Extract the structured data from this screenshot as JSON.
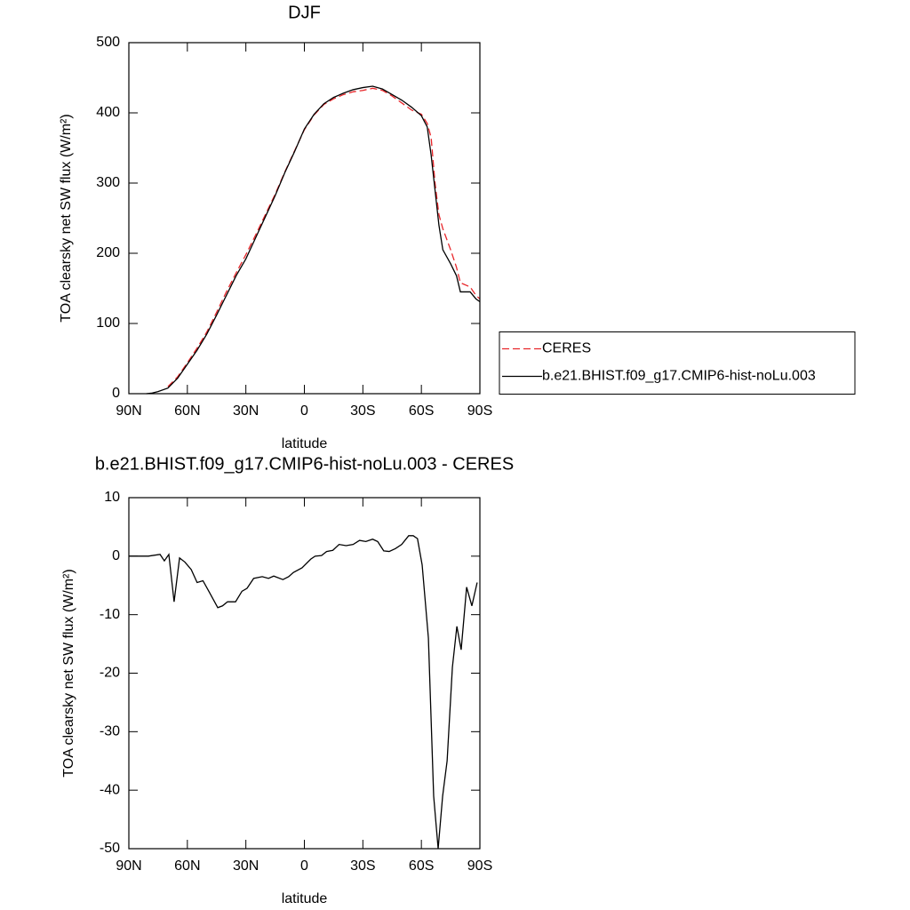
{
  "chart_data": [
    {
      "type": "line",
      "title": "DJF",
      "xlabel": "latitude",
      "ylabel": "TOA clearsky net SW flux (W/m²)",
      "x": [
        81,
        78,
        75,
        70,
        65,
        60,
        55,
        50,
        45,
        40,
        35,
        30,
        25,
        20,
        15,
        10,
        5,
        0,
        -5,
        -10,
        -15,
        -20,
        -25,
        -30,
        -35,
        -40,
        -45,
        -50,
        -55,
        -60,
        -63,
        -65,
        -67,
        -69,
        -71,
        -75,
        -78,
        -80,
        -85,
        -88,
        -90
      ],
      "series": [
        {
          "name": "CERES",
          "color": "#e8262a",
          "style": "dashed",
          "values": [
            null,
            null,
            null,
            10,
            24,
            44,
            65,
            88,
            116,
            145,
            172,
            198,
            226,
            255,
            284,
            316,
            346,
            376,
            397,
            412,
            420,
            426,
            430,
            432,
            435,
            432,
            424,
            414,
            404,
            398,
            385,
            365,
            300,
            255,
            235,
            205,
            180,
            158,
            152,
            140,
            135
          ]
        },
        {
          "name": "b.e21.BHIST.f09_g17.CMIP6-hist-noLu.003",
          "color": "#000000",
          "style": "solid",
          "values": [
            0,
            1,
            3,
            8,
            22,
            42,
            62,
            85,
            112,
            140,
            168,
            192,
            222,
            252,
            282,
            315,
            345,
            377,
            398,
            413,
            422,
            428,
            433,
            436,
            438,
            434,
            426,
            418,
            408,
            396,
            380,
            340,
            290,
            240,
            205,
            185,
            168,
            145,
            145,
            135,
            131
          ]
        }
      ],
      "xlim": [
        90,
        -90
      ],
      "xticks": [
        {
          "value": 90,
          "label": "90N"
        },
        {
          "value": 60,
          "label": "60N"
        },
        {
          "value": 30,
          "label": "30N"
        },
        0,
        {
          "value": -30,
          "label": "30S"
        },
        {
          "value": -60,
          "label": "60S"
        },
        {
          "value": -90,
          "label": "90S"
        }
      ],
      "ylim": [
        0,
        500
      ],
      "yticks": [
        0,
        100,
        200,
        300,
        400,
        500
      ],
      "legend": "right"
    },
    {
      "type": "line",
      "title": "b.e21.BHIST.f09_g17.CMIP6-hist-noLu.003 - CERES",
      "xlabel": "latitude",
      "ylabel": "TOA clearsky net SW flux (W/m²)",
      "x": [
        90,
        80,
        74,
        71.8,
        69.5,
        66.8,
        64,
        61.3,
        58,
        55,
        52,
        49,
        44.4,
        42,
        39.4,
        35.3,
        32,
        29.4,
        26,
        21.6,
        18.4,
        15.7,
        11,
        8,
        5.7,
        1.2,
        -3.3,
        -5.5,
        -8.8,
        -11.4,
        -14.6,
        -17.8,
        -21.4,
        -25,
        -28.3,
        -31.5,
        -35,
        -37.6,
        -40.7,
        -43.5,
        -46.7,
        -49.9,
        -53.5,
        -55.8,
        -58,
        -60.4,
        -63.6,
        -66.3,
        -68.6,
        -70.9,
        -73.2,
        -75.9,
        -78.2,
        -80.4,
        -83.2,
        -85.9,
        -88.6
      ],
      "series": [
        {
          "color": "#000000",
          "style": "solid",
          "values": [
            0,
            0,
            0.3,
            -0.8,
            0.3,
            -7.8,
            -0.3,
            -1,
            -2.3,
            -4.5,
            -4.2,
            -6,
            -8.8,
            -8.5,
            -7.8,
            -7.8,
            -6,
            -5.5,
            -3.8,
            -3.5,
            -3.8,
            -3.4,
            -4,
            -3.5,
            -2.8,
            -2,
            -0.5,
            0,
            0.1,
            0.8,
            1,
            2,
            1.8,
            2,
            2.7,
            2.5,
            2.9,
            2.5,
            0.9,
            0.8,
            1.3,
            2,
            3.5,
            3.5,
            3,
            -1.5,
            -14,
            -41,
            -50,
            -41,
            -35,
            -19,
            -12,
            -16,
            -5.3,
            -8.5,
            -4.5
          ]
        }
      ],
      "xlim": [
        90,
        -90
      ],
      "xticks": [
        {
          "value": 90,
          "label": "90N"
        },
        {
          "value": 60,
          "label": "60N"
        },
        {
          "value": 30,
          "label": "30N"
        },
        0,
        {
          "value": -30,
          "label": "30S"
        },
        {
          "value": -60,
          "label": "60S"
        },
        {
          "value": -90,
          "label": "90S"
        }
      ],
      "ylim": [
        -50,
        10
      ],
      "yticks": [
        -50,
        -40,
        -30,
        -20,
        -10,
        0,
        10
      ]
    }
  ]
}
